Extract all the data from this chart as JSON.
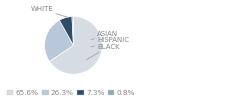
{
  "labels": [
    "WHITE",
    "HISPANIC",
    "BLACK",
    "ASIAN"
  ],
  "values": [
    65.6,
    26.3,
    7.3,
    0.8
  ],
  "colors": [
    "#d6dce4",
    "#b8c7d9",
    "#2e4d6b",
    "#8caabe"
  ],
  "legend_labels": [
    "65.6%",
    "26.3%",
    "7.3%",
    "0.8%"
  ],
  "legend_colors": [
    "#d6dce4",
    "#b8c7d9",
    "#2e4d6b",
    "#8caabe"
  ],
  "label_fontsize": 5.0,
  "legend_fontsize": 5.2,
  "background_color": "#ffffff",
  "text_color": "#888888",
  "line_color": "#aaaaaa"
}
